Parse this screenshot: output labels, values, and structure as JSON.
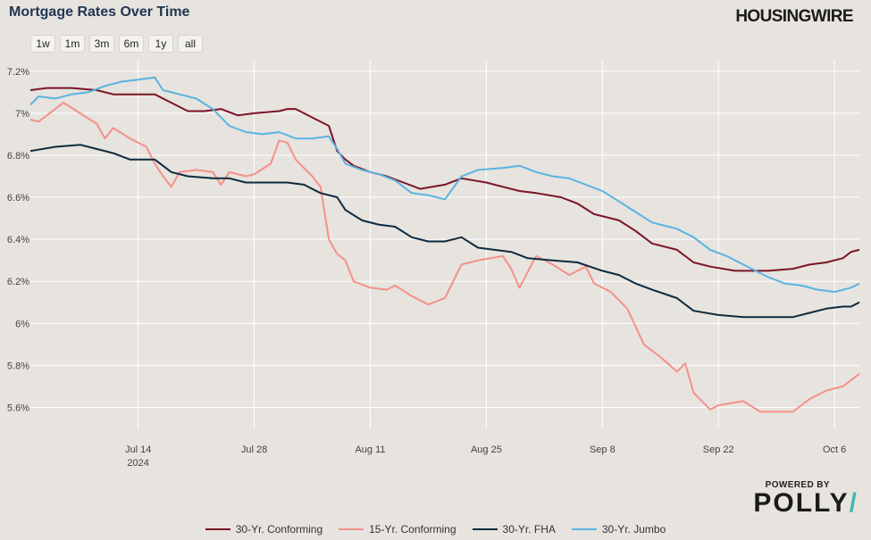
{
  "header": {
    "title": "Mortgage Rates Over Time",
    "brand": "HOUSINGWIRE"
  },
  "range_buttons": [
    "1w",
    "1m",
    "3m",
    "6m",
    "1y",
    "all"
  ],
  "polly": {
    "powered_by": "POWERED BY",
    "name": "POLLY",
    "slash": "/",
    "accent_color": "#3fb8b0"
  },
  "chart_data": {
    "type": "line",
    "title": "Mortgage Rates Over Time",
    "xlabel": "",
    "ylabel": "",
    "grid": true,
    "legend_position": "bottom",
    "x_range": [
      "2024-07-01",
      "2024-10-09"
    ],
    "y_range": [
      5.5,
      7.25
    ],
    "y_ticks": [
      5.6,
      5.8,
      6.0,
      6.2,
      6.4,
      6.6,
      6.8,
      7.0,
      7.2
    ],
    "y_tick_labels": [
      "5.6%",
      "5.8%",
      "6%",
      "6.2%",
      "6.4%",
      "6.6%",
      "6.8%",
      "7%",
      "7.2%"
    ],
    "x_ticks": [
      "2024-07-14",
      "2024-07-28",
      "2024-08-11",
      "2024-08-25",
      "2024-09-08",
      "2024-09-22",
      "2024-10-06"
    ],
    "x_tick_labels": [
      "Jul 14",
      "Jul 28",
      "Aug 11",
      "Aug 25",
      "Sep 8",
      "Sep 22",
      "Oct 6"
    ],
    "x_tick_sublabel": {
      "index": 0,
      "text": "2024"
    },
    "series": [
      {
        "name": "30-Yr. Conforming",
        "color": "#7a1526",
        "points": [
          [
            "2024-07-01",
            7.11
          ],
          [
            "2024-07-03",
            7.12
          ],
          [
            "2024-07-06",
            7.12
          ],
          [
            "2024-07-09",
            7.11
          ],
          [
            "2024-07-11",
            7.09
          ],
          [
            "2024-07-14",
            7.09
          ],
          [
            "2024-07-16",
            7.09
          ],
          [
            "2024-07-18",
            7.05
          ],
          [
            "2024-07-20",
            7.01
          ],
          [
            "2024-07-22",
            7.01
          ],
          [
            "2024-07-24",
            7.02
          ],
          [
            "2024-07-26",
            6.99
          ],
          [
            "2024-07-28",
            7.0
          ],
          [
            "2024-07-31",
            7.01
          ],
          [
            "2024-08-01",
            7.02
          ],
          [
            "2024-08-02",
            7.02
          ],
          [
            "2024-08-04",
            6.98
          ],
          [
            "2024-08-06",
            6.94
          ],
          [
            "2024-08-07",
            6.82
          ],
          [
            "2024-08-08",
            6.78
          ],
          [
            "2024-08-09",
            6.75
          ],
          [
            "2024-08-11",
            6.72
          ],
          [
            "2024-08-13",
            6.7
          ],
          [
            "2024-08-15",
            6.67
          ],
          [
            "2024-08-17",
            6.64
          ],
          [
            "2024-08-20",
            6.66
          ],
          [
            "2024-08-22",
            6.69
          ],
          [
            "2024-08-25",
            6.67
          ],
          [
            "2024-08-27",
            6.65
          ],
          [
            "2024-08-29",
            6.63
          ],
          [
            "2024-08-31",
            6.62
          ],
          [
            "2024-09-03",
            6.6
          ],
          [
            "2024-09-05",
            6.57
          ],
          [
            "2024-09-07",
            6.52
          ],
          [
            "2024-09-10",
            6.49
          ],
          [
            "2024-09-12",
            6.44
          ],
          [
            "2024-09-14",
            6.38
          ],
          [
            "2024-09-17",
            6.35
          ],
          [
            "2024-09-19",
            6.29
          ],
          [
            "2024-09-21",
            6.27
          ],
          [
            "2024-09-24",
            6.25
          ],
          [
            "2024-09-26",
            6.25
          ],
          [
            "2024-09-28",
            6.25
          ],
          [
            "2024-10-01",
            6.26
          ],
          [
            "2024-10-03",
            6.28
          ],
          [
            "2024-10-05",
            6.29
          ],
          [
            "2024-10-07",
            6.31
          ],
          [
            "2024-10-08",
            6.34
          ],
          [
            "2024-10-09",
            6.35
          ]
        ]
      },
      {
        "name": "15-Yr. Conforming",
        "color": "#f4918a",
        "points": [
          [
            "2024-07-01",
            6.97
          ],
          [
            "2024-07-02",
            6.96
          ],
          [
            "2024-07-04",
            7.02
          ],
          [
            "2024-07-05",
            7.05
          ],
          [
            "2024-07-07",
            7.0
          ],
          [
            "2024-07-09",
            6.95
          ],
          [
            "2024-07-10",
            6.88
          ],
          [
            "2024-07-11",
            6.93
          ],
          [
            "2024-07-13",
            6.88
          ],
          [
            "2024-07-15",
            6.84
          ],
          [
            "2024-07-16",
            6.76
          ],
          [
            "2024-07-17",
            6.7
          ],
          [
            "2024-07-18",
            6.65
          ],
          [
            "2024-07-19",
            6.72
          ],
          [
            "2024-07-21",
            6.73
          ],
          [
            "2024-07-23",
            6.72
          ],
          [
            "2024-07-24",
            6.66
          ],
          [
            "2024-07-25",
            6.72
          ],
          [
            "2024-07-27",
            6.7
          ],
          [
            "2024-07-28",
            6.71
          ],
          [
            "2024-07-30",
            6.76
          ],
          [
            "2024-07-31",
            6.87
          ],
          [
            "2024-08-01",
            6.86
          ],
          [
            "2024-08-02",
            6.78
          ],
          [
            "2024-08-03",
            6.74
          ],
          [
            "2024-08-04",
            6.7
          ],
          [
            "2024-08-05",
            6.65
          ],
          [
            "2024-08-06",
            6.4
          ],
          [
            "2024-08-07",
            6.33
          ],
          [
            "2024-08-08",
            6.3
          ],
          [
            "2024-08-09",
            6.2
          ],
          [
            "2024-08-11",
            6.17
          ],
          [
            "2024-08-13",
            6.16
          ],
          [
            "2024-08-14",
            6.18
          ],
          [
            "2024-08-16",
            6.13
          ],
          [
            "2024-08-18",
            6.09
          ],
          [
            "2024-08-20",
            6.12
          ],
          [
            "2024-08-22",
            6.28
          ],
          [
            "2024-08-24",
            6.3
          ],
          [
            "2024-08-27",
            6.32
          ],
          [
            "2024-08-28",
            6.26
          ],
          [
            "2024-08-29",
            6.17
          ],
          [
            "2024-08-31",
            6.32
          ],
          [
            "2024-09-02",
            6.28
          ],
          [
            "2024-09-04",
            6.23
          ],
          [
            "2024-09-06",
            6.27
          ],
          [
            "2024-09-07",
            6.19
          ],
          [
            "2024-09-09",
            6.15
          ],
          [
            "2024-09-11",
            6.07
          ],
          [
            "2024-09-13",
            5.9
          ],
          [
            "2024-09-15",
            5.84
          ],
          [
            "2024-09-17",
            5.77
          ],
          [
            "2024-09-18",
            5.81
          ],
          [
            "2024-09-19",
            5.67
          ],
          [
            "2024-09-21",
            5.59
          ],
          [
            "2024-09-22",
            5.61
          ],
          [
            "2024-09-25",
            5.63
          ],
          [
            "2024-09-27",
            5.58
          ],
          [
            "2024-09-29",
            5.58
          ],
          [
            "2024-10-01",
            5.58
          ],
          [
            "2024-10-03",
            5.64
          ],
          [
            "2024-10-05",
            5.68
          ],
          [
            "2024-10-07",
            5.7
          ],
          [
            "2024-10-09",
            5.76
          ]
        ]
      },
      {
        "name": "30-Yr. FHA",
        "color": "#0e2a3e",
        "points": [
          [
            "2024-07-01",
            6.82
          ],
          [
            "2024-07-04",
            6.84
          ],
          [
            "2024-07-07",
            6.85
          ],
          [
            "2024-07-09",
            6.83
          ],
          [
            "2024-07-11",
            6.81
          ],
          [
            "2024-07-13",
            6.78
          ],
          [
            "2024-07-16",
            6.78
          ],
          [
            "2024-07-18",
            6.72
          ],
          [
            "2024-07-20",
            6.7
          ],
          [
            "2024-07-23",
            6.69
          ],
          [
            "2024-07-25",
            6.69
          ],
          [
            "2024-07-27",
            6.67
          ],
          [
            "2024-07-30",
            6.67
          ],
          [
            "2024-08-01",
            6.67
          ],
          [
            "2024-08-03",
            6.66
          ],
          [
            "2024-08-05",
            6.62
          ],
          [
            "2024-08-07",
            6.6
          ],
          [
            "2024-08-08",
            6.54
          ],
          [
            "2024-08-10",
            6.49
          ],
          [
            "2024-08-12",
            6.47
          ],
          [
            "2024-08-14",
            6.46
          ],
          [
            "2024-08-16",
            6.41
          ],
          [
            "2024-08-18",
            6.39
          ],
          [
            "2024-08-20",
            6.39
          ],
          [
            "2024-08-22",
            6.41
          ],
          [
            "2024-08-24",
            6.36
          ],
          [
            "2024-08-26",
            6.35
          ],
          [
            "2024-08-28",
            6.34
          ],
          [
            "2024-08-30",
            6.31
          ],
          [
            "2024-09-02",
            6.3
          ],
          [
            "2024-09-05",
            6.29
          ],
          [
            "2024-09-08",
            6.25
          ],
          [
            "2024-09-10",
            6.23
          ],
          [
            "2024-09-12",
            6.19
          ],
          [
            "2024-09-14",
            6.16
          ],
          [
            "2024-09-17",
            6.12
          ],
          [
            "2024-09-19",
            6.06
          ],
          [
            "2024-09-22",
            6.04
          ],
          [
            "2024-09-25",
            6.03
          ],
          [
            "2024-09-28",
            6.03
          ],
          [
            "2024-10-01",
            6.03
          ],
          [
            "2024-10-03",
            6.05
          ],
          [
            "2024-10-05",
            6.07
          ],
          [
            "2024-10-07",
            6.08
          ],
          [
            "2024-10-08",
            6.08
          ],
          [
            "2024-10-09",
            6.1
          ]
        ]
      },
      {
        "name": "30-Yr. Jumbo",
        "color": "#5ab4e0",
        "points": [
          [
            "2024-07-01",
            7.04
          ],
          [
            "2024-07-02",
            7.08
          ],
          [
            "2024-07-04",
            7.07
          ],
          [
            "2024-07-06",
            7.09
          ],
          [
            "2024-07-08",
            7.1
          ],
          [
            "2024-07-10",
            7.13
          ],
          [
            "2024-07-12",
            7.15
          ],
          [
            "2024-07-14",
            7.16
          ],
          [
            "2024-07-16",
            7.17
          ],
          [
            "2024-07-17",
            7.11
          ],
          [
            "2024-07-19",
            7.09
          ],
          [
            "2024-07-21",
            7.07
          ],
          [
            "2024-07-23",
            7.02
          ],
          [
            "2024-07-25",
            6.94
          ],
          [
            "2024-07-27",
            6.91
          ],
          [
            "2024-07-29",
            6.9
          ],
          [
            "2024-07-31",
            6.91
          ],
          [
            "2024-08-02",
            6.88
          ],
          [
            "2024-08-04",
            6.88
          ],
          [
            "2024-08-06",
            6.89
          ],
          [
            "2024-08-07",
            6.83
          ],
          [
            "2024-08-08",
            6.76
          ],
          [
            "2024-08-10",
            6.73
          ],
          [
            "2024-08-12",
            6.71
          ],
          [
            "2024-08-14",
            6.68
          ],
          [
            "2024-08-16",
            6.62
          ],
          [
            "2024-08-18",
            6.61
          ],
          [
            "2024-08-20",
            6.59
          ],
          [
            "2024-08-22",
            6.7
          ],
          [
            "2024-08-24",
            6.73
          ],
          [
            "2024-08-27",
            6.74
          ],
          [
            "2024-08-29",
            6.75
          ],
          [
            "2024-08-31",
            6.72
          ],
          [
            "2024-09-02",
            6.7
          ],
          [
            "2024-09-04",
            6.69
          ],
          [
            "2024-09-06",
            6.66
          ],
          [
            "2024-09-08",
            6.63
          ],
          [
            "2024-09-10",
            6.58
          ],
          [
            "2024-09-12",
            6.53
          ],
          [
            "2024-09-14",
            6.48
          ],
          [
            "2024-09-17",
            6.45
          ],
          [
            "2024-09-19",
            6.41
          ],
          [
            "2024-09-21",
            6.35
          ],
          [
            "2024-09-23",
            6.32
          ],
          [
            "2024-09-26",
            6.26
          ],
          [
            "2024-09-28",
            6.22
          ],
          [
            "2024-09-30",
            6.19
          ],
          [
            "2024-10-02",
            6.18
          ],
          [
            "2024-10-04",
            6.16
          ],
          [
            "2024-10-06",
            6.15
          ],
          [
            "2024-10-08",
            6.17
          ],
          [
            "2024-10-09",
            6.19
          ]
        ]
      }
    ]
  }
}
